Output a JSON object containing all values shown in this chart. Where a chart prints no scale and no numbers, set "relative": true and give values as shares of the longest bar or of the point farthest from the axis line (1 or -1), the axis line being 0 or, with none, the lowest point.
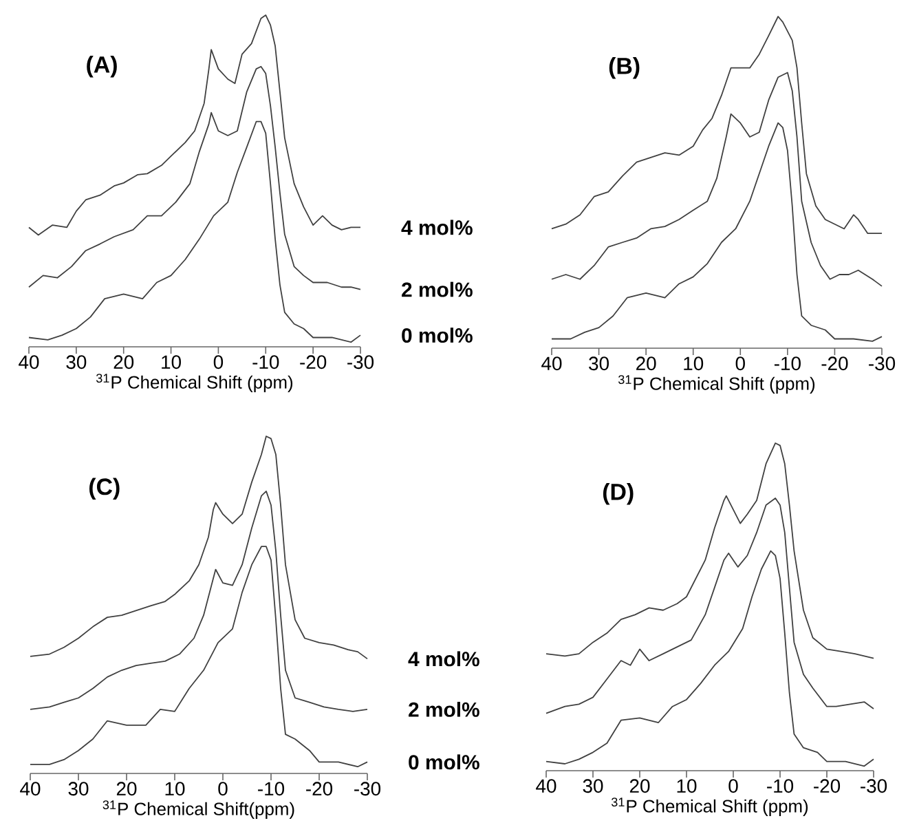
{
  "chart_data": [
    {
      "type": "line",
      "relative": true,
      "title": "(A)",
      "xlabel": "$^{31}$P Chemical Shift (ppm)",
      "xlim": [
        40,
        -30
      ],
      "xticks": [
        40,
        30,
        20,
        10,
        0,
        -10,
        -20,
        -30
      ],
      "series": [
        {
          "name": "4 mol%",
          "color": "#404040",
          "x": [
            40,
            38,
            35,
            32,
            30,
            28,
            25,
            22,
            20,
            17,
            15,
            12,
            10,
            7,
            5,
            3,
            2,
            1.5,
            0,
            -2,
            -3.5,
            -5,
            -7,
            -9,
            -10,
            -11,
            -12,
            -13,
            -14,
            -16,
            -18,
            -20,
            -22,
            -24,
            -26,
            -28,
            -30
          ],
          "values": [
            0.36,
            0.337,
            0.367,
            0.36,
            0.409,
            0.443,
            0.457,
            0.485,
            0.494,
            0.519,
            0.522,
            0.547,
            0.575,
            0.616,
            0.651,
            0.734,
            0.838,
            0.896,
            0.838,
            0.807,
            0.794,
            0.882,
            0.914,
            0.99,
            1.0,
            0.97,
            0.907,
            0.769,
            0.63,
            0.492,
            0.422,
            0.367,
            0.395,
            0.367,
            0.353,
            0.36,
            0.36
          ]
        },
        {
          "name": "2 mol%",
          "color": "#404040",
          "x": [
            40,
            37,
            34,
            31,
            28,
            25,
            22,
            18,
            15,
            12,
            9,
            6,
            4,
            2,
            1.5,
            0,
            -2,
            -4,
            -6,
            -8,
            -9,
            -10,
            -11,
            -12,
            -13,
            -14,
            -16,
            -18,
            -20,
            -23,
            -26,
            -28,
            -30
          ],
          "values": [
            0.18,
            0.215,
            0.208,
            0.242,
            0.29,
            0.31,
            0.332,
            0.353,
            0.395,
            0.395,
            0.436,
            0.492,
            0.589,
            0.672,
            0.706,
            0.651,
            0.637,
            0.651,
            0.769,
            0.838,
            0.845,
            0.824,
            0.727,
            0.602,
            0.464,
            0.339,
            0.242,
            0.215,
            0.194,
            0.194,
            0.18,
            0.18,
            0.173
          ]
        },
        {
          "name": "0 mol%",
          "color": "#404040",
          "x": [
            40,
            36,
            33,
            30,
            27,
            24,
            20,
            16,
            13,
            10,
            7,
            4,
            1,
            -2,
            -4,
            -6,
            -8,
            -9,
            -10,
            -11,
            -12,
            -13,
            -14,
            -16,
            -18,
            -20,
            -24,
            -28,
            -30
          ],
          "values": [
            0.028,
            0.021,
            0.035,
            0.055,
            0.09,
            0.145,
            0.159,
            0.145,
            0.194,
            0.215,
            0.263,
            0.325,
            0.395,
            0.436,
            0.526,
            0.602,
            0.679,
            0.679,
            0.644,
            0.492,
            0.325,
            0.187,
            0.104,
            0.069,
            0.055,
            0.028,
            0.028,
            0.014,
            0.035
          ]
        }
      ]
    },
    {
      "type": "line",
      "relative": true,
      "title": "(B)",
      "xlabel": "$^{31}$P Chemical Shift (ppm)",
      "xlim": [
        40,
        -30
      ],
      "xticks": [
        40,
        30,
        20,
        10,
        0,
        -10,
        -20,
        -30
      ],
      "series": [
        {
          "color": "#404040",
          "x": [
            40,
            37,
            34,
            31,
            28,
            25,
            22,
            19,
            16,
            13,
            10,
            8,
            6,
            4,
            2,
            0,
            -2,
            -4,
            -6,
            -8,
            -9,
            -11,
            -12,
            -13,
            -14,
            -16,
            -18,
            -20,
            -22,
            -24,
            -25,
            -27,
            -30
          ],
          "values": [
            0.36,
            0.374,
            0.402,
            0.457,
            0.471,
            0.519,
            0.561,
            0.575,
            0.589,
            0.582,
            0.609,
            0.658,
            0.693,
            0.762,
            0.845,
            0.845,
            0.845,
            0.886,
            0.942,
            1.0,
            0.983,
            0.928,
            0.845,
            0.679,
            0.526,
            0.429,
            0.388,
            0.374,
            0.36,
            0.402,
            0.388,
            0.346,
            0.346
          ]
        },
        {
          "color": "#404040",
          "x": [
            40,
            37,
            34,
            31,
            28,
            25,
            22,
            19,
            16,
            13,
            10,
            7,
            5,
            3,
            2,
            0,
            -2,
            -4,
            -6,
            -8,
            -10,
            -11,
            -12,
            -13,
            -15,
            -17,
            -19,
            -21,
            -23,
            -25,
            -28,
            -30
          ],
          "values": [
            0.208,
            0.222,
            0.208,
            0.249,
            0.305,
            0.319,
            0.332,
            0.36,
            0.367,
            0.388,
            0.416,
            0.443,
            0.512,
            0.637,
            0.706,
            0.679,
            0.637,
            0.651,
            0.748,
            0.817,
            0.831,
            0.776,
            0.637,
            0.443,
            0.319,
            0.249,
            0.208,
            0.222,
            0.222,
            0.235,
            0.208,
            0.187
          ]
        },
        {
          "color": "#404040",
          "x": [
            40,
            36,
            33,
            30,
            27,
            24,
            20,
            16,
            13,
            10,
            7,
            4,
            1,
            -2,
            -4,
            -6,
            -8,
            -9,
            -10,
            -11,
            -12,
            -13,
            -15,
            -18,
            -20,
            -24,
            -28,
            -30
          ],
          "values": [
            0.028,
            0.028,
            0.048,
            0.062,
            0.097,
            0.152,
            0.166,
            0.152,
            0.194,
            0.215,
            0.255,
            0.319,
            0.36,
            0.443,
            0.526,
            0.609,
            0.679,
            0.665,
            0.596,
            0.429,
            0.222,
            0.097,
            0.069,
            0.055,
            0.028,
            0.028,
            0.021,
            0.035
          ]
        }
      ]
    },
    {
      "type": "line",
      "relative": true,
      "title": "(C)",
      "xlabel": "$^{31}$P Chemical Shift(ppm)",
      "xlim": [
        40,
        -30
      ],
      "xticks": [
        40,
        30,
        20,
        10,
        0,
        -10,
        -20,
        -30
      ],
      "series": [
        {
          "name": "4 mol%",
          "color": "#404040",
          "x": [
            40,
            36,
            33,
            30,
            27,
            24,
            21,
            18,
            15,
            12,
            10,
            7,
            5,
            3,
            2,
            1.5,
            0,
            -2,
            -4,
            -6,
            -8,
            -9,
            -10,
            -11,
            -12,
            -13,
            -15,
            -17,
            -20,
            -23,
            -26,
            -28,
            -30
          ],
          "values": [
            0.347,
            0.354,
            0.374,
            0.401,
            0.435,
            0.463,
            0.469,
            0.483,
            0.497,
            0.51,
            0.531,
            0.571,
            0.619,
            0.701,
            0.782,
            0.803,
            0.769,
            0.741,
            0.769,
            0.864,
            0.946,
            1.0,
            0.993,
            0.946,
            0.796,
            0.619,
            0.456,
            0.401,
            0.388,
            0.381,
            0.367,
            0.361,
            0.34
          ]
        },
        {
          "name": "2 mol%",
          "color": "#404040",
          "x": [
            40,
            36,
            33,
            30,
            27,
            24,
            21,
            18,
            15,
            12,
            9,
            6,
            4,
            2,
            1.5,
            0,
            -2,
            -4,
            -6,
            -8,
            -9,
            -10,
            -11,
            -12,
            -13,
            -15,
            -18,
            -21,
            -24,
            -27,
            -30
          ],
          "values": [
            0.19,
            0.197,
            0.211,
            0.224,
            0.252,
            0.286,
            0.306,
            0.32,
            0.327,
            0.333,
            0.354,
            0.401,
            0.469,
            0.578,
            0.605,
            0.565,
            0.558,
            0.619,
            0.728,
            0.823,
            0.837,
            0.796,
            0.66,
            0.469,
            0.306,
            0.224,
            0.211,
            0.197,
            0.19,
            0.184,
            0.19
          ]
        },
        {
          "name": "0 mol%",
          "color": "#404040",
          "x": [
            40,
            36,
            33,
            30,
            27,
            24,
            20,
            16,
            13,
            10,
            7,
            4,
            1,
            -2,
            -4,
            -6,
            -8,
            -9,
            -10,
            -11,
            -12,
            -13,
            -15,
            -18,
            -20,
            -24,
            -28,
            -30
          ],
          "values": [
            0.027,
            0.027,
            0.041,
            0.068,
            0.102,
            0.156,
            0.143,
            0.143,
            0.19,
            0.184,
            0.252,
            0.306,
            0.388,
            0.429,
            0.537,
            0.619,
            0.673,
            0.673,
            0.633,
            0.456,
            0.252,
            0.116,
            0.102,
            0.068,
            0.034,
            0.034,
            0.02,
            0.034
          ]
        }
      ]
    },
    {
      "type": "line",
      "relative": true,
      "title": "(D)",
      "xlabel": "$^{31}$P Chemical Shift (ppm)",
      "xlim": [
        40,
        -30
      ],
      "xticks": [
        40,
        30,
        20,
        10,
        0,
        -10,
        -20,
        -30
      ],
      "series": [
        {
          "color": "#404040",
          "x": [
            40,
            36,
            33,
            30,
            27,
            24,
            21,
            18,
            15,
            12,
            10,
            8,
            6,
            4,
            2,
            1.5,
            0,
            -1.5,
            -3,
            -5,
            -7,
            -9,
            -10,
            -11,
            -12,
            -13,
            -15,
            -17,
            -20,
            -23,
            -26,
            -30
          ],
          "values": [
            0.357,
            0.35,
            0.357,
            0.392,
            0.42,
            0.462,
            0.476,
            0.497,
            0.49,
            0.51,
            0.531,
            0.587,
            0.643,
            0.741,
            0.825,
            0.839,
            0.797,
            0.755,
            0.783,
            0.825,
            0.937,
            1.0,
            0.993,
            0.937,
            0.811,
            0.671,
            0.49,
            0.406,
            0.371,
            0.364,
            0.357,
            0.343
          ]
        },
        {
          "color": "#404040",
          "x": [
            40,
            36,
            33,
            30,
            27,
            24,
            22,
            20,
            18,
            15,
            12,
            9,
            6,
            4,
            2,
            1,
            -1,
            -3,
            -5,
            -7,
            -9,
            -10,
            -11,
            -12,
            -13,
            -15,
            -17,
            -20,
            -22,
            -25,
            -28,
            -30
          ],
          "values": [
            0.175,
            0.196,
            0.203,
            0.224,
            0.28,
            0.336,
            0.322,
            0.371,
            0.336,
            0.357,
            0.378,
            0.399,
            0.476,
            0.559,
            0.643,
            0.664,
            0.622,
            0.657,
            0.727,
            0.811,
            0.832,
            0.811,
            0.727,
            0.559,
            0.392,
            0.294,
            0.252,
            0.196,
            0.196,
            0.203,
            0.21,
            0.189
          ]
        },
        {
          "color": "#404040",
          "x": [
            40,
            36,
            33,
            30,
            27,
            24,
            20,
            16,
            13,
            10,
            7,
            4,
            1,
            -2,
            -4,
            -6,
            -8,
            -9,
            -10,
            -11,
            -12,
            -13,
            -15,
            -18,
            -20,
            -24,
            -28,
            -30
          ],
          "values": [
            0.028,
            0.021,
            0.035,
            0.056,
            0.084,
            0.154,
            0.161,
            0.147,
            0.196,
            0.217,
            0.266,
            0.322,
            0.364,
            0.434,
            0.531,
            0.615,
            0.671,
            0.657,
            0.587,
            0.42,
            0.238,
            0.112,
            0.07,
            0.056,
            0.028,
            0.028,
            0.014,
            0.035
          ]
        }
      ]
    }
  ]
}
